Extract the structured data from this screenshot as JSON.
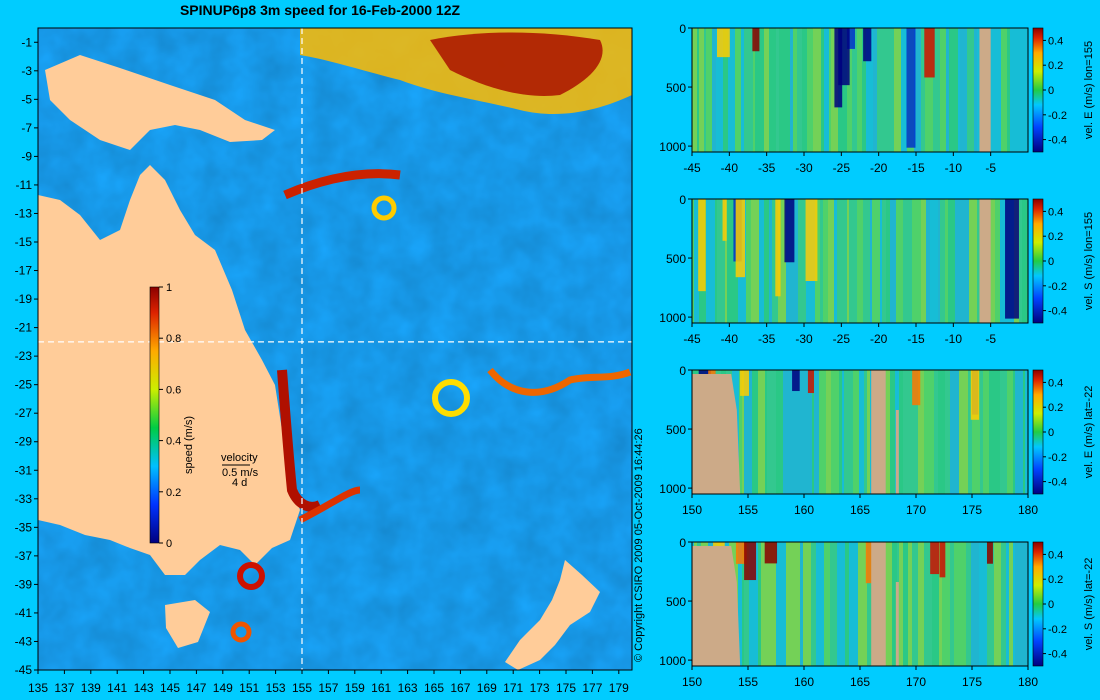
{
  "title": "SPINUP6p8 3m speed for 16-Feb-2000 12Z",
  "copyright": "© Copyright CSIRO 2009   05-Oct-2009 16:44:26",
  "colors": {
    "background": "#00ccff",
    "land": "#ffcc99",
    "bathy_land": "#ccaa88",
    "guide_line": "#ffffff"
  },
  "map": {
    "x_ticks": [
      "135",
      "137",
      "139",
      "141",
      "143",
      "145",
      "147",
      "149",
      "151",
      "153",
      "155",
      "157",
      "159",
      "161",
      "163",
      "165",
      "167",
      "169",
      "171",
      "173",
      "175",
      "177",
      "179"
    ],
    "y_ticks": [
      "-1",
      "-3",
      "-5",
      "-7",
      "-9",
      "-11",
      "-13",
      "-15",
      "-17",
      "-19",
      "-21",
      "-23",
      "-25",
      "-27",
      "-29",
      "-31",
      "-33",
      "-35",
      "-37",
      "-39",
      "-41",
      "-43",
      "-45"
    ],
    "lon_range": [
      135,
      180
    ],
    "lat_range": [
      -45,
      0
    ],
    "section_lon": 155,
    "section_lat": -22,
    "colorbar": {
      "label": "speed (m/s)",
      "ticks": [
        "1",
        "0.8",
        "0.6",
        "0.4",
        "0.2",
        "0"
      ]
    },
    "velocity_legend": {
      "label": "velocity",
      "speed": "0.5 m/s",
      "time": "4 d"
    }
  },
  "chart_data": [
    {
      "type": "heatmap",
      "title": "SPINUP6p8 3m speed for 16-Feb-2000 12Z",
      "xlabel": "",
      "ylabel": "",
      "xlim": [
        135,
        180
      ],
      "ylim": [
        -45,
        0
      ],
      "colorbar_label": "speed (m/s)",
      "colorbar_range": [
        0,
        1
      ]
    },
    {
      "type": "heatmap",
      "colorbar_label": "vel. E (m/s) lon=155",
      "x_ticks": [
        "-45",
        "-40",
        "-35",
        "-30",
        "-25",
        "-20",
        "-15",
        "-10",
        "-5"
      ],
      "y_ticks": [
        "0",
        "500",
        "1000"
      ],
      "cb_ticks": [
        "0.4",
        "0.2",
        "0",
        "-0.2",
        "-0.4"
      ],
      "xlim": [
        -45,
        0
      ],
      "ylim": [
        0,
        1050
      ]
    },
    {
      "type": "heatmap",
      "colorbar_label": "vel. S (m/s) lon=155",
      "x_ticks": [
        "-45",
        "-40",
        "-35",
        "-30",
        "-25",
        "-20",
        "-15",
        "-10",
        "-5"
      ],
      "y_ticks": [
        "0",
        "500",
        "1000"
      ],
      "cb_ticks": [
        "0.4",
        "0.2",
        "0",
        "-0.2",
        "-0.4"
      ],
      "xlim": [
        -45,
        0
      ],
      "ylim": [
        0,
        1050
      ]
    },
    {
      "type": "heatmap",
      "colorbar_label": "vel. E (m/s) lat=-22",
      "x_ticks": [
        "150",
        "155",
        "160",
        "165",
        "170",
        "175",
        "180"
      ],
      "y_ticks": [
        "0",
        "500",
        "1000"
      ],
      "cb_ticks": [
        "0.4",
        "0.2",
        "0",
        "-0.2",
        "-0.4"
      ],
      "xlim": [
        150,
        180
      ],
      "ylim": [
        0,
        1050
      ]
    },
    {
      "type": "heatmap",
      "colorbar_label": "vel. S (m/s) lat=-22",
      "x_ticks": [
        "150",
        "155",
        "160",
        "165",
        "170",
        "175",
        "180"
      ],
      "y_ticks": [
        "0",
        "500",
        "1000"
      ],
      "cb_ticks": [
        "0.4",
        "0.2",
        "0",
        "-0.2",
        "-0.4"
      ],
      "xlim": [
        150,
        180
      ],
      "ylim": [
        0,
        1050
      ]
    }
  ]
}
